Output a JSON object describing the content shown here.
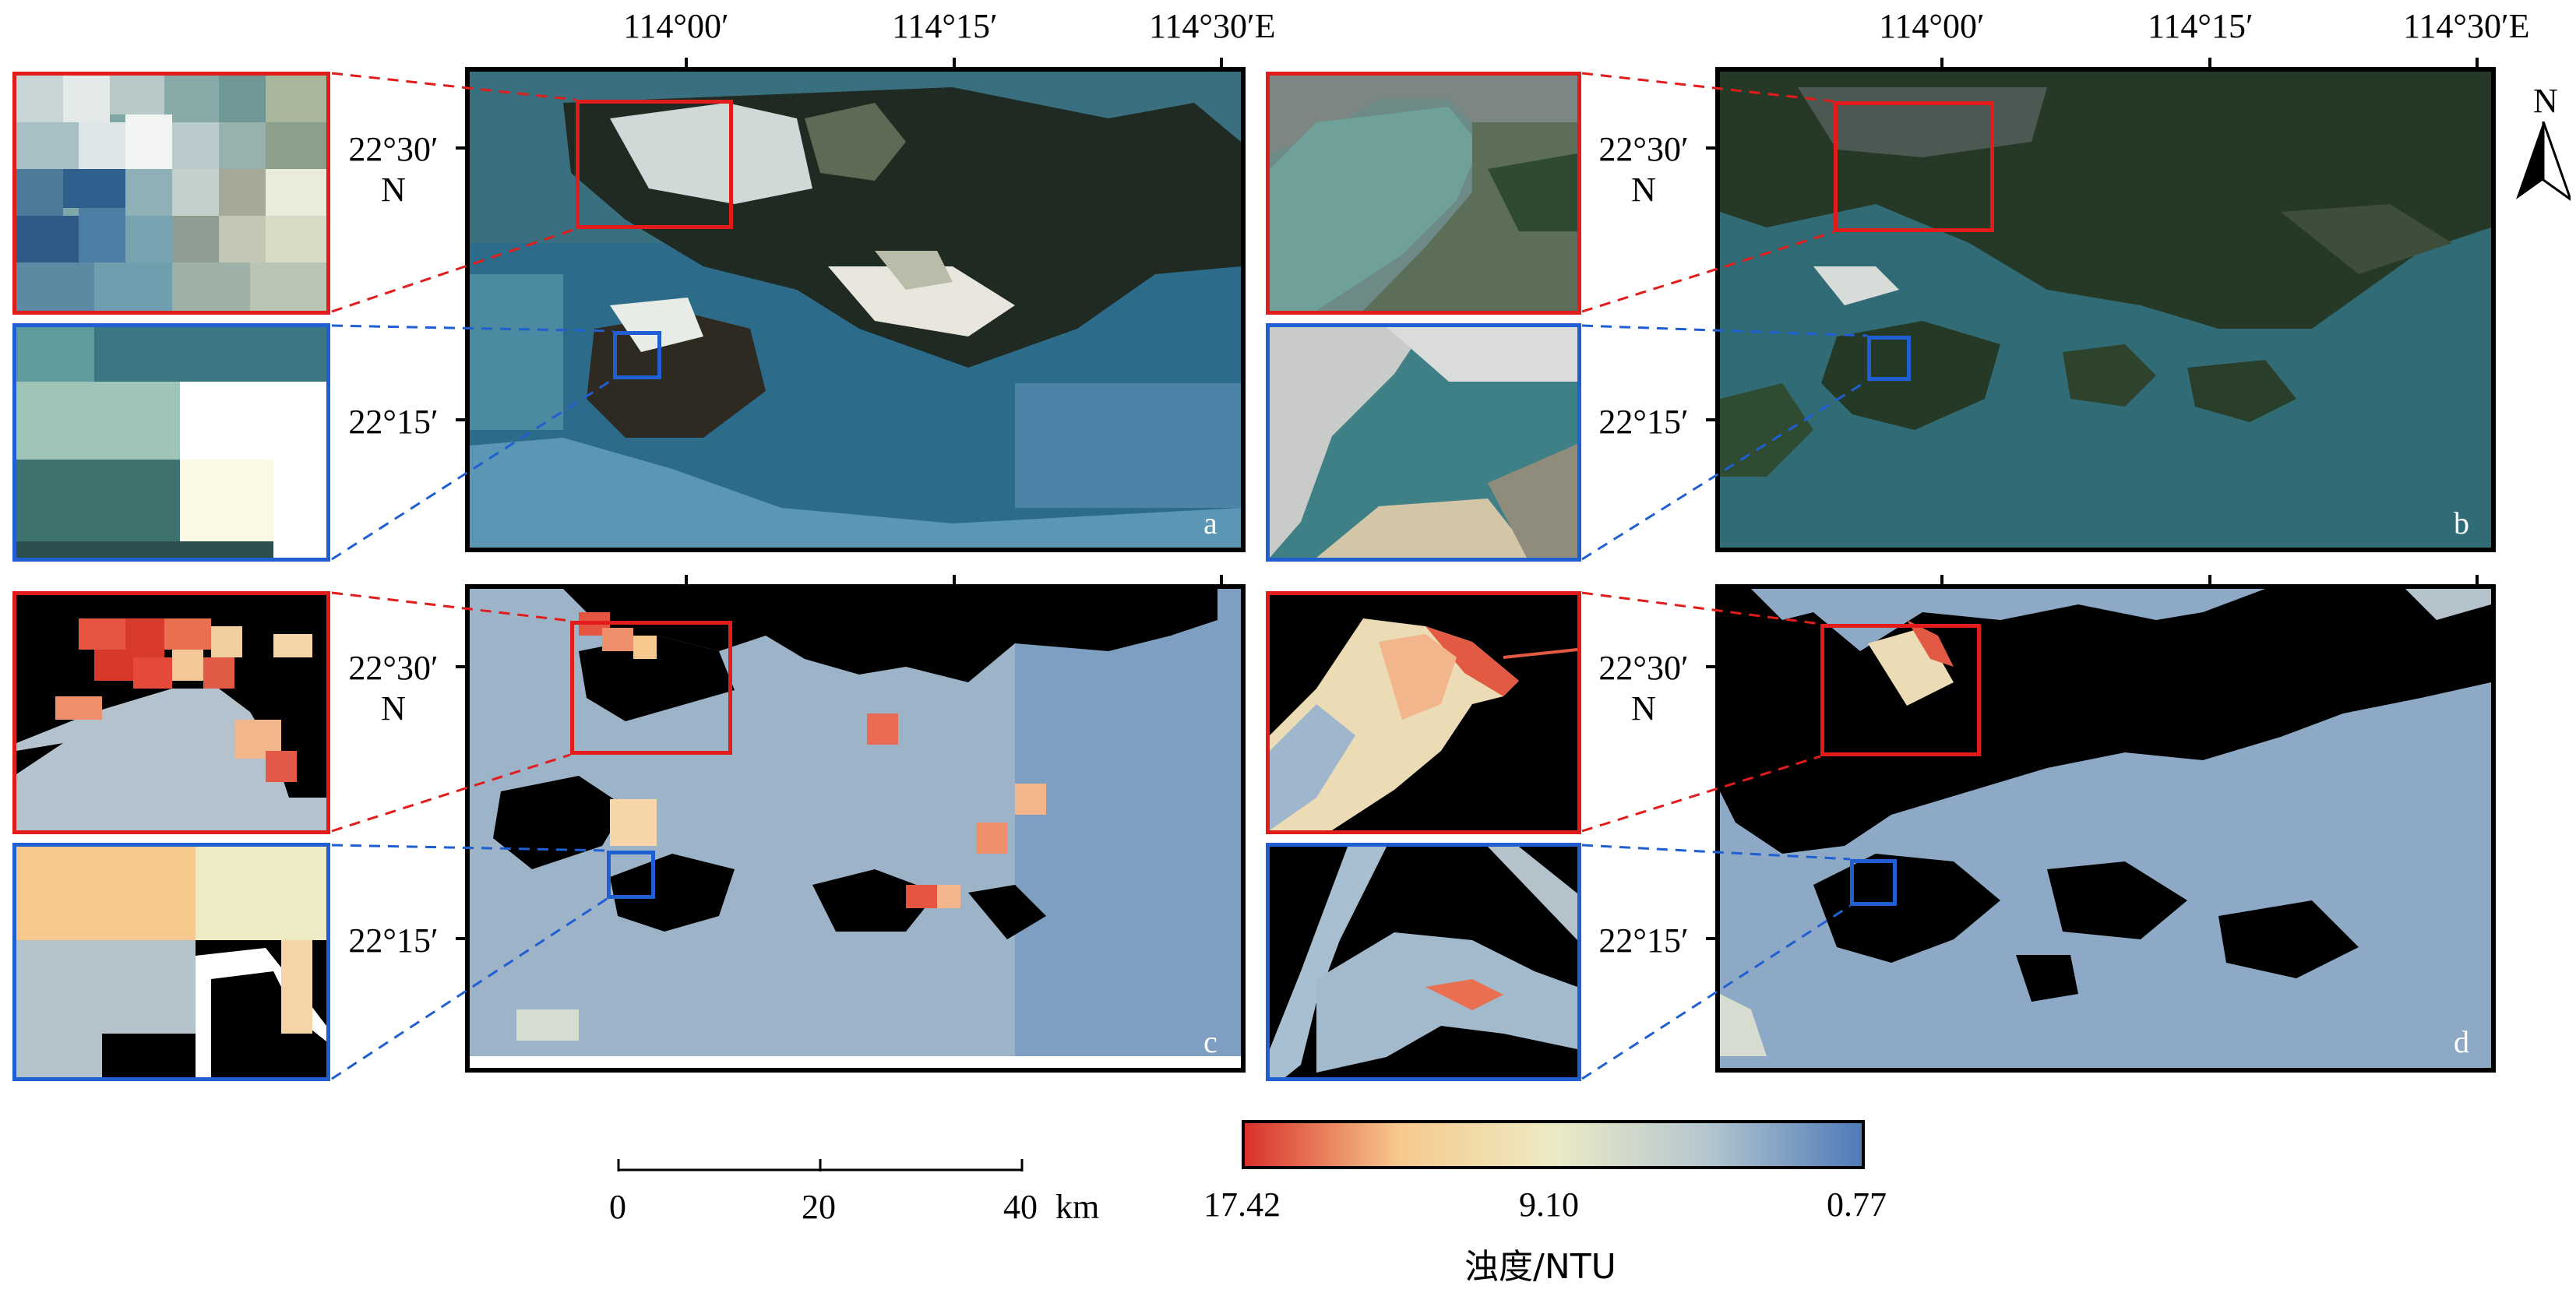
{
  "lon_ticks": [
    "114°00′",
    "114°15′",
    "114°30′E"
  ],
  "lat_ticks": {
    "north": [
      "22°30′",
      "N"
    ],
    "south": [
      "22°15′"
    ]
  },
  "panels": {
    "a": "a",
    "b": "b",
    "c": "c",
    "d": "d"
  },
  "north_arrow": {
    "label": "N"
  },
  "scale_bar": {
    "ticks": [
      "0",
      "20",
      "40"
    ],
    "unit": "km"
  },
  "colorbar": {
    "left_value": "17.42",
    "mid_value": "9.10",
    "right_value": "0.77",
    "title": "浊度/NTU",
    "colors": {
      "high": "#d9312b",
      "mid_high": "#f7c98c",
      "mid": "#ecebc4",
      "mid_low": "#b4c6cf",
      "low": "#4e7bb8"
    }
  },
  "colors": {
    "red_box": "#e21b1b",
    "blue_box": "#1f5fd1",
    "sea": "#2f6677",
    "land_mask": "#000000"
  }
}
